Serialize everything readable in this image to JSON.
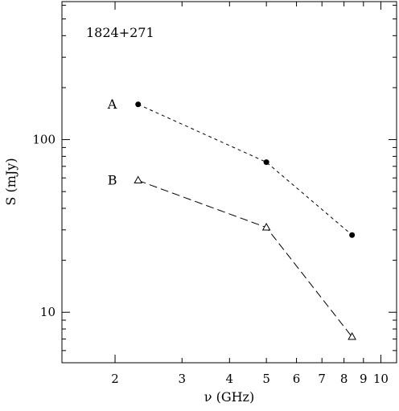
{
  "chart_data": {
    "type": "line",
    "title": "1824+271",
    "xlabel": "ν (GHz)",
    "ylabel": "S (mJy)",
    "x_scale": "log",
    "y_scale": "log",
    "xlim": [
      1.45,
      11.0
    ],
    "ylim": [
      5.1,
      630
    ],
    "x_ticks": [
      2,
      3,
      4,
      5,
      6,
      7,
      8,
      9,
      10
    ],
    "x_tick_labels": [
      "2",
      "3",
      "4",
      "5",
      "6",
      "7",
      "8",
      "9",
      "10"
    ],
    "y_ticks": [
      10,
      100
    ],
    "y_tick_labels": [
      "10",
      "100"
    ],
    "grid": false,
    "series": [
      {
        "name": "A",
        "marker": "filled-circle",
        "line_style": "short-dash",
        "x": [
          2.3,
          5.0,
          8.4
        ],
        "y": [
          160,
          74,
          28
        ]
      },
      {
        "name": "B",
        "marker": "open-triangle",
        "line_style": "long-dash",
        "x": [
          2.3,
          5.0,
          8.4
        ],
        "y": [
          58,
          31,
          7.2
        ]
      }
    ]
  }
}
